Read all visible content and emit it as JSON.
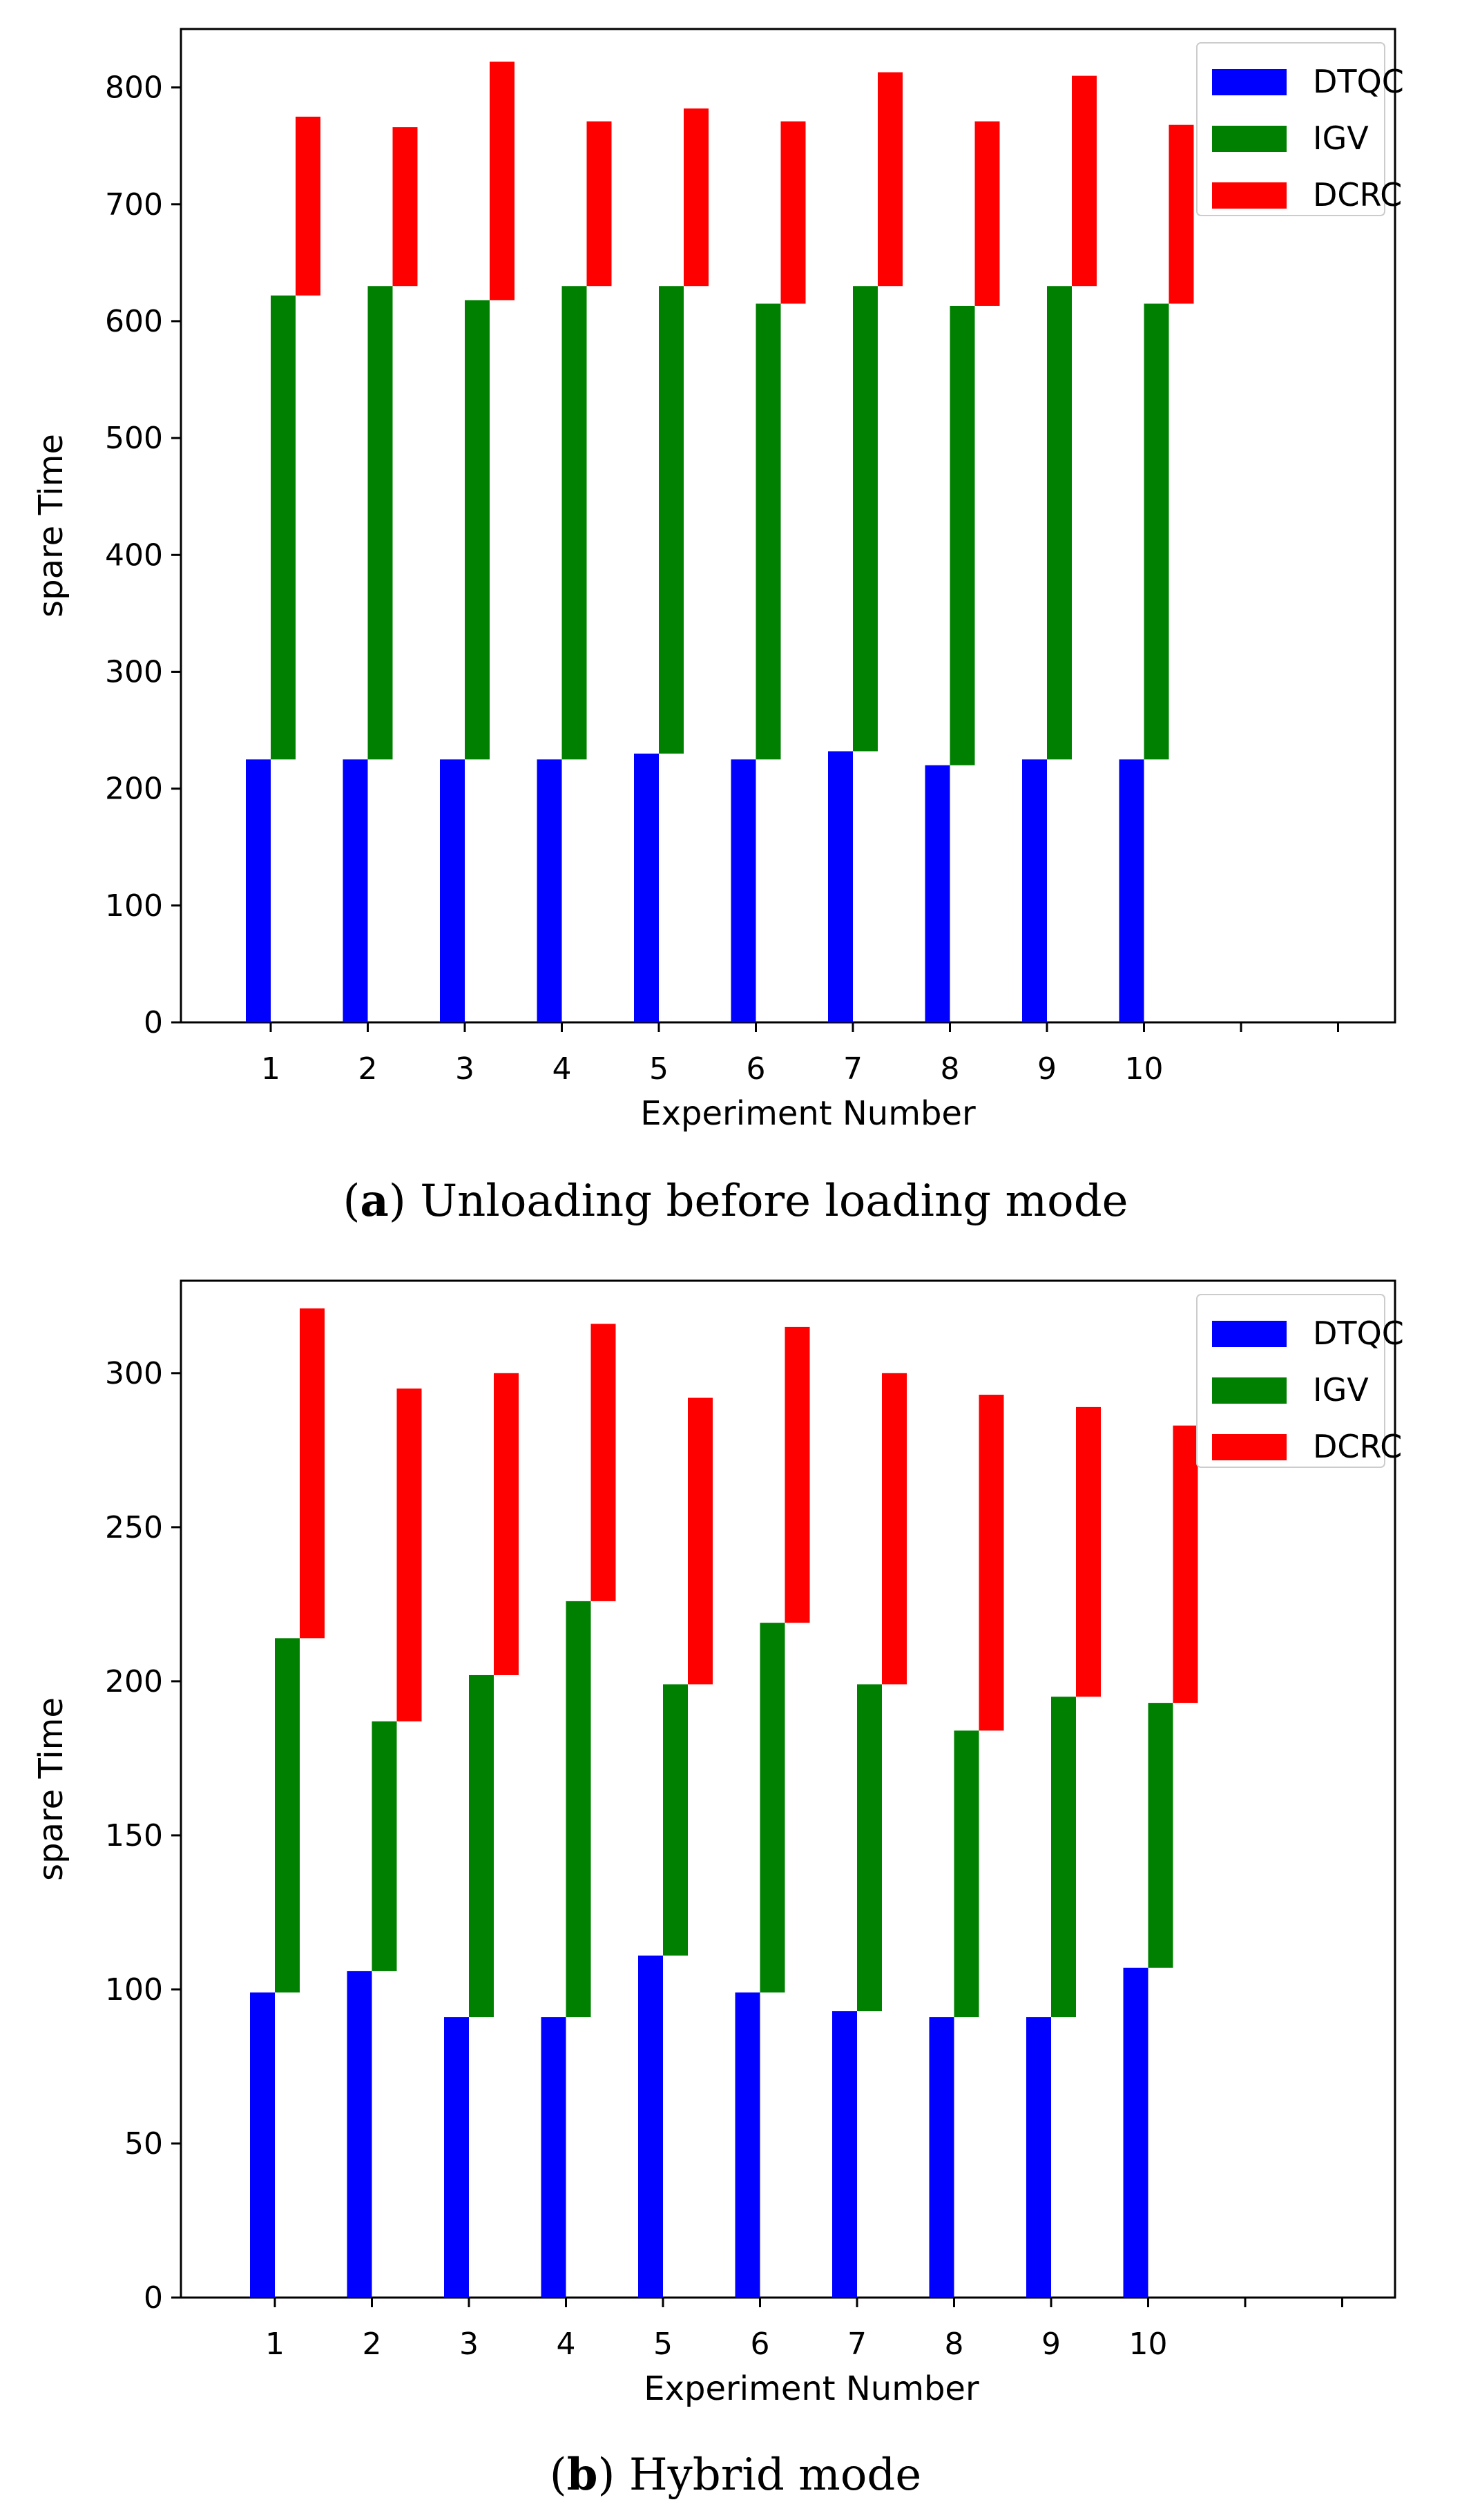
{
  "chart_data": [
    {
      "type": "bar",
      "stacked": true,
      "caption_letter": "a",
      "caption_text": "Unloading before loading mode",
      "xlabel": "Experiment Number",
      "ylabel": "spare Time",
      "categories": [
        "1",
        "2",
        "3",
        "4",
        "5",
        "6",
        "7",
        "8",
        "9",
        "10"
      ],
      "ylim": [
        0,
        850
      ],
      "yticks": [
        0,
        100,
        200,
        300,
        400,
        500,
        600,
        700,
        800
      ],
      "extra_xticks": 2,
      "legend_position": "top-right",
      "series": [
        {
          "name": "DTQC",
          "color": "#0000ff",
          "base": [
            0,
            0,
            0,
            0,
            0,
            0,
            0,
            0,
            0,
            0
          ],
          "top": [
            225,
            225,
            225,
            225,
            230,
            225,
            232,
            220,
            225,
            225
          ]
        },
        {
          "name": "IGV",
          "color": "#008000",
          "base": [
            225,
            225,
            225,
            225,
            230,
            225,
            232,
            220,
            225,
            225
          ],
          "top": [
            622,
            630,
            618,
            630,
            630,
            615,
            630,
            613,
            630,
            615
          ]
        },
        {
          "name": "DCRC",
          "color": "#ff0000",
          "base": [
            622,
            630,
            618,
            630,
            630,
            615,
            630,
            613,
            630,
            615
          ],
          "top": [
            775,
            766,
            822,
            771,
            782,
            771,
            813,
            771,
            810,
            768
          ]
        }
      ]
    },
    {
      "type": "bar",
      "stacked": true,
      "caption_letter": "b",
      "caption_text": "Hybrid mode",
      "xlabel": "Experiment Number",
      "ylabel": "spare Time",
      "categories": [
        "1",
        "2",
        "3",
        "4",
        "5",
        "6",
        "7",
        "8",
        "9",
        "10"
      ],
      "ylim": [
        0,
        330
      ],
      "yticks": [
        0,
        50,
        100,
        150,
        200,
        250,
        300
      ],
      "extra_xticks": 2,
      "legend_position": "top-right",
      "series": [
        {
          "name": "DTQC",
          "color": "#0000ff",
          "base": [
            0,
            0,
            0,
            0,
            0,
            0,
            0,
            0,
            0,
            0
          ],
          "top": [
            99,
            106,
            91,
            91,
            111,
            99,
            93,
            91,
            91,
            107
          ]
        },
        {
          "name": "IGV",
          "color": "#008000",
          "base": [
            99,
            106,
            91,
            91,
            111,
            99,
            93,
            91,
            91,
            107
          ],
          "top": [
            214,
            187,
            202,
            226,
            199,
            219,
            199,
            184,
            195,
            193
          ]
        },
        {
          "name": "DCRC",
          "color": "#ff0000",
          "base": [
            214,
            187,
            202,
            226,
            199,
            219,
            199,
            184,
            195,
            193
          ],
          "top": [
            321,
            295,
            300,
            316,
            292,
            315,
            300,
            293,
            289,
            283
          ]
        }
      ]
    }
  ]
}
